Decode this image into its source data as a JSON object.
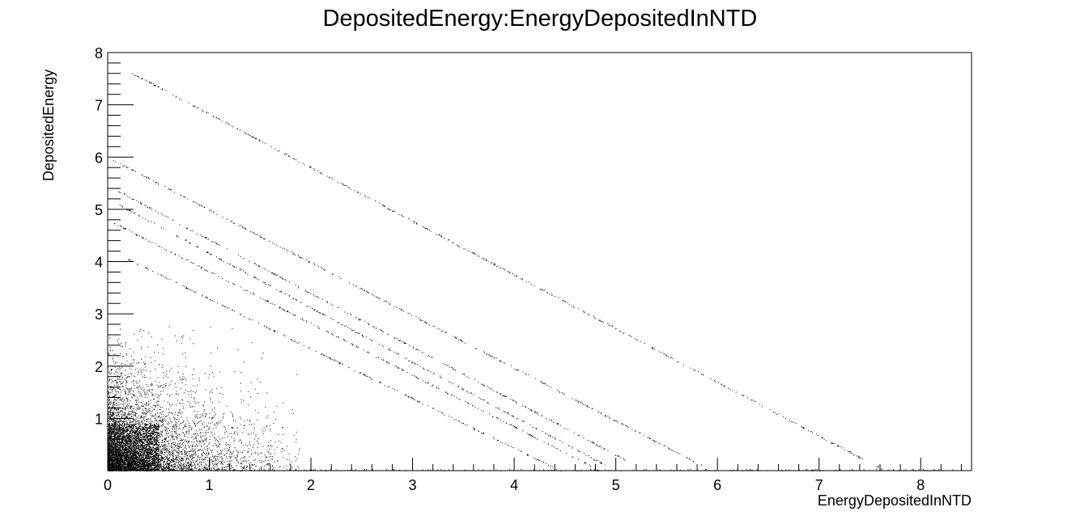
{
  "chart_data": {
    "type": "scatter",
    "title": "DepositedEnergy:EnergyDepositedInNTD",
    "xlabel": "EnergyDepositedInNTD",
    "ylabel": "DepositedEnergy",
    "xlim": [
      0,
      8.5
    ],
    "ylim": [
      0,
      8
    ],
    "x_ticks": [
      "0",
      "1",
      "2",
      "3",
      "4",
      "5",
      "6",
      "7",
      "8"
    ],
    "y_ticks": [
      "1",
      "2",
      "3",
      "4",
      "5",
      "6",
      "7",
      "8"
    ],
    "grid": false,
    "legend": "none",
    "marker_color": "#000000",
    "diagonal_bands": [
      {
        "x": [
          0.2,
          7.65
        ],
        "y": [
          7.65,
          0
        ]
      },
      {
        "x": [
          0.05,
          5.9
        ],
        "y": [
          5.95,
          0.05
        ]
      },
      {
        "x": [
          0.1,
          5.1
        ],
        "y": [
          5.35,
          0.2
        ]
      },
      {
        "x": [
          0.1,
          4.9
        ],
        "y": [
          5.1,
          0.1
        ]
      },
      {
        "x": [
          0.05,
          4.8
        ],
        "y": [
          4.75,
          0.05
        ]
      },
      {
        "x": [
          0.2,
          4.4
        ],
        "y": [
          4.05,
          0.05
        ]
      }
    ],
    "dense_region": {
      "x_max": 1.9,
      "y_max": 2.8,
      "description": "dense cluster of points near origin"
    },
    "baseline_points": {
      "x": [
        0,
        8.4
      ],
      "y": 0
    }
  }
}
